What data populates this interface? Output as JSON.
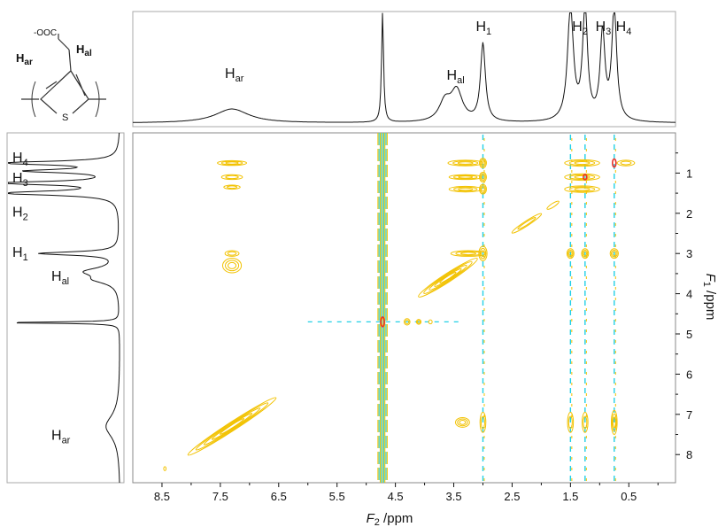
{
  "structure": {
    "carboxylate": "-OOC",
    "h_ar": "H",
    "h_ar_sub": "ar",
    "h_al": "H",
    "h_al_sub": "al",
    "sulfur": "S"
  },
  "chart_data": {
    "type": "heatmap",
    "description_kind": "2D NMR contour spectrum with 1D projections",
    "x_axis": {
      "label_italic": "F",
      "label_sub": "2",
      "label_unit": " /ppm",
      "reversed": true,
      "range": [
        9.0,
        -0.3
      ],
      "ticks": [
        8.5,
        7.5,
        6.5,
        5.5,
        4.5,
        3.5,
        2.5,
        1.5,
        0.5
      ],
      "tick_labels": [
        "8.5",
        "7.5",
        "6.5",
        "5.5",
        "4.5",
        "3.5",
        "2.5",
        "1.5",
        "0.5"
      ]
    },
    "y_axis": {
      "label_italic": "F",
      "label_sub": "1",
      "label_unit": " /ppm",
      "reversed": true,
      "range": [
        0.0,
        8.7
      ],
      "ticks": [
        1,
        2,
        3,
        4,
        5,
        6,
        7,
        8
      ],
      "tick_labels": [
        "1",
        "2",
        "3",
        "4",
        "5",
        "6",
        "7",
        "8"
      ]
    },
    "top_projection_labels": [
      {
        "main": "H",
        "sub": "ar",
        "ppm": 7.3
      },
      {
        "main": "H",
        "sub": "al",
        "ppm": 3.5
      },
      {
        "main": "H",
        "sub": "1",
        "ppm": 3.0
      },
      {
        "main": "H",
        "sub": "2",
        "ppm": 1.35
      },
      {
        "main": "H",
        "sub": "3",
        "ppm": 0.95
      },
      {
        "main": "H",
        "sub": "4",
        "ppm": 0.6
      }
    ],
    "left_projection_labels": [
      {
        "main": "H",
        "sub": "4",
        "ppm": 0.6
      },
      {
        "main": "H",
        "sub": "3",
        "ppm": 1.1
      },
      {
        "main": "H",
        "sub": "2",
        "ppm": 1.95
      },
      {
        "main": "H",
        "sub": "1",
        "ppm": 2.95
      },
      {
        "main": "H",
        "sub": "al",
        "ppm": 3.55
      },
      {
        "main": "H",
        "sub": "ar",
        "ppm": 7.5
      }
    ],
    "projection_peaks": [
      {
        "ppm": 7.3,
        "height": 0.13,
        "width": 0.35
      },
      {
        "ppm": 4.72,
        "height": 1.05,
        "width": 0.02
      },
      {
        "ppm": 3.65,
        "height": 0.18,
        "width": 0.12
      },
      {
        "ppm": 3.45,
        "height": 0.28,
        "width": 0.12
      },
      {
        "ppm": 3.0,
        "height": 0.72,
        "width": 0.05
      },
      {
        "ppm": 1.5,
        "height": 1.05,
        "width": 0.06
      },
      {
        "ppm": 1.25,
        "height": 1.05,
        "width": 0.05
      },
      {
        "ppm": 0.95,
        "height": 0.8,
        "width": 0.05
      },
      {
        "ppm": 0.75,
        "height": 1.05,
        "width": 0.05
      }
    ],
    "solvent_band_ppm": 4.72,
    "vertical_streaks_ppm": [
      3.0,
      1.5,
      1.25,
      0.75
    ],
    "contour_colors": {
      "positive": "#f2c200",
      "negative": "#22d0e6",
      "intense": "#e8312a"
    },
    "cross_peaks": [
      {
        "x": 7.3,
        "y": 0.75,
        "rx": 0.25,
        "ry": 0.06,
        "levels": 3
      },
      {
        "x": 7.3,
        "y": 1.1,
        "rx": 0.18,
        "ry": 0.06,
        "levels": 2
      },
      {
        "x": 7.3,
        "y": 1.35,
        "rx": 0.14,
        "ry": 0.05,
        "levels": 2
      },
      {
        "x": 7.3,
        "y": 3.0,
        "rx": 0.12,
        "ry": 0.07,
        "levels": 2
      },
      {
        "x": 7.3,
        "y": 3.3,
        "rx": 0.16,
        "ry": 0.18,
        "levels": 3
      },
      {
        "x": 3.3,
        "y": 0.75,
        "rx": 0.3,
        "ry": 0.07,
        "levels": 3
      },
      {
        "x": 3.3,
        "y": 1.1,
        "rx": 0.28,
        "ry": 0.06,
        "levels": 3
      },
      {
        "x": 3.3,
        "y": 1.4,
        "rx": 0.28,
        "ry": 0.07,
        "levels": 3
      },
      {
        "x": 3.0,
        "y": 0.75,
        "rx": 0.06,
        "ry": 0.12,
        "levels": 3
      },
      {
        "x": 3.0,
        "y": 1.1,
        "rx": 0.06,
        "ry": 0.12,
        "levels": 3
      },
      {
        "x": 3.0,
        "y": 1.4,
        "rx": 0.06,
        "ry": 0.12,
        "levels": 3
      },
      {
        "x": 3.25,
        "y": 3.0,
        "rx": 0.3,
        "ry": 0.07,
        "levels": 3
      },
      {
        "x": 3.0,
        "y": 3.0,
        "rx": 0.07,
        "ry": 0.18,
        "levels": 3
      },
      {
        "x": 1.3,
        "y": 0.75,
        "rx": 0.3,
        "ry": 0.08,
        "levels": 3
      },
      {
        "x": 1.3,
        "y": 1.1,
        "rx": 0.3,
        "ry": 0.08,
        "levels": 3
      },
      {
        "x": 1.3,
        "y": 1.4,
        "rx": 0.3,
        "ry": 0.08,
        "levels": 3
      },
      {
        "x": 1.5,
        "y": 3.0,
        "rx": 0.06,
        "ry": 0.12,
        "levels": 3
      },
      {
        "x": 1.25,
        "y": 3.0,
        "rx": 0.06,
        "ry": 0.12,
        "levels": 3
      },
      {
        "x": 0.75,
        "y": 3.0,
        "rx": 0.07,
        "ry": 0.12,
        "levels": 3
      },
      {
        "x": 0.55,
        "y": 0.75,
        "rx": 0.15,
        "ry": 0.07,
        "levels": 2
      },
      {
        "x": 3.35,
        "y": 7.2,
        "rx": 0.12,
        "ry": 0.12,
        "levels": 3
      },
      {
        "x": 3.0,
        "y": 7.2,
        "rx": 0.05,
        "ry": 0.25,
        "levels": 2
      },
      {
        "x": 1.5,
        "y": 7.2,
        "rx": 0.05,
        "ry": 0.25,
        "levels": 2
      },
      {
        "x": 1.25,
        "y": 7.2,
        "rx": 0.05,
        "ry": 0.25,
        "levels": 2
      },
      {
        "x": 0.75,
        "y": 7.2,
        "rx": 0.05,
        "ry": 0.3,
        "levels": 3
      },
      {
        "x": 4.3,
        "y": 4.7,
        "rx": 0.05,
        "ry": 0.08,
        "levels": 2
      },
      {
        "x": 4.1,
        "y": 4.7,
        "rx": 0.04,
        "ry": 0.06,
        "levels": 2
      },
      {
        "x": 3.9,
        "y": 4.7,
        "rx": 0.03,
        "ry": 0.05,
        "levels": 1
      },
      {
        "x": 8.45,
        "y": 8.35,
        "rx": 0.02,
        "ry": 0.05,
        "levels": 1
      }
    ],
    "diagonal_peaks": [
      {
        "x": 7.3,
        "y": 7.3,
        "rx": 0.9,
        "ry": 0.07,
        "levels": 5
      },
      {
        "x": 3.6,
        "y": 3.6,
        "rx": 0.6,
        "ry": 0.07,
        "levels": 5
      },
      {
        "x": 2.25,
        "y": 2.25,
        "rx": 0.3,
        "ry": 0.04,
        "levels": 2
      },
      {
        "x": 1.8,
        "y": 1.8,
        "rx": 0.12,
        "ry": 0.03,
        "levels": 1
      }
    ],
    "intense_peaks": [
      {
        "x": 0.75,
        "y": 0.75,
        "rx": 0.03,
        "ry": 0.1
      },
      {
        "x": 4.72,
        "y": 4.7,
        "rx": 0.03,
        "ry": 0.12
      },
      {
        "x": 1.25,
        "y": 1.1,
        "rx": 0.02,
        "ry": 0.05
      }
    ],
    "horizontal_solvent_row": {
      "y": 4.7,
      "x_from": 6.0,
      "x_to": 3.4
    }
  }
}
